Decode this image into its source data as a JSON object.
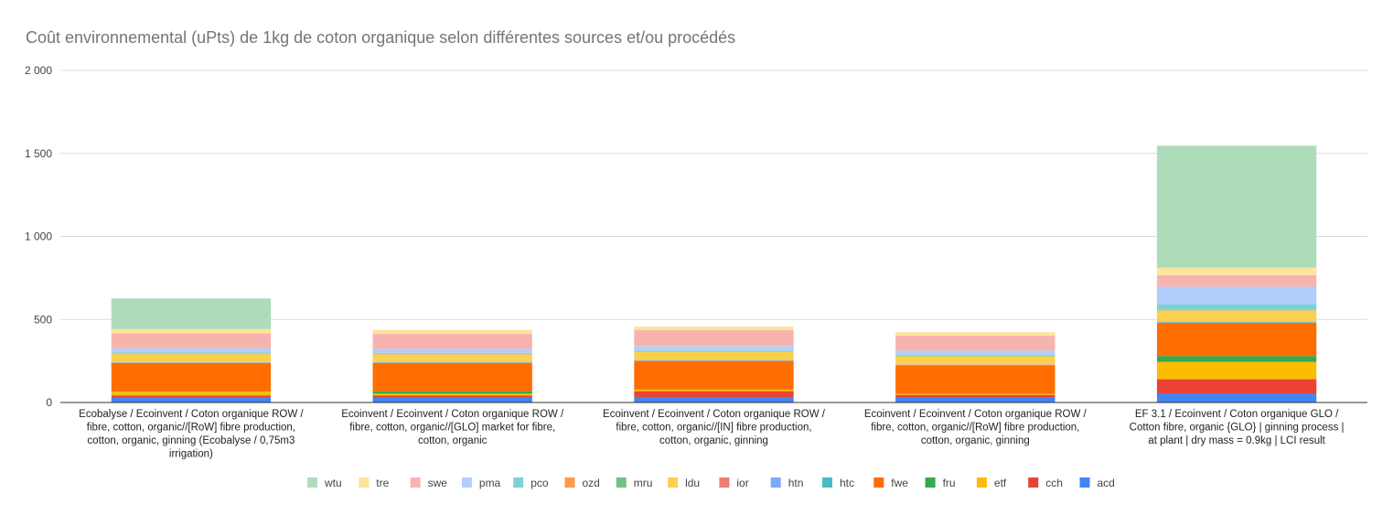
{
  "chart_data": {
    "type": "bar",
    "stacked": true,
    "title": "Coût environnemental (uPts) de 1kg de coton organique selon différentes sources et/ou procédés",
    "xlabel": "",
    "ylabel": "",
    "ylim": [
      0,
      2000
    ],
    "yticks": [
      0,
      500,
      1000,
      1500,
      2000
    ],
    "ytick_labels": [
      "0",
      "500",
      "1 000",
      "1 500",
      "2 000"
    ],
    "grid": true,
    "legend_position": "bottom",
    "categories": [
      [
        "Ecobalyse / Ecoinvent / Coton organique ROW /",
        "fibre, cotton, organic//[RoW] fibre production,",
        "cotton, organic, ginning (Ecobalyse / 0,75m3",
        "irrigation)"
      ],
      [
        "Ecoinvent / Ecoinvent / Coton organique ROW /",
        "fibre, cotton, organic//[GLO] market for fibre,",
        "cotton, organic"
      ],
      [
        "Ecoinvent / Ecoinvent / Coton organique ROW /",
        "fibre, cotton, organic//[IN] fibre production,",
        "cotton, organic, ginning"
      ],
      [
        "Ecoinvent / Ecoinvent / Coton organique ROW /",
        "fibre, cotton, organic//[RoW] fibre production,",
        "cotton, organic, ginning"
      ],
      [
        "EF 3.1 / Ecoinvent / Coton organique GLO /",
        "Cotton fibre, organic {GLO} | ginning process |",
        "at plant | dry mass = 0.9kg | LCI result"
      ]
    ],
    "series": [
      {
        "name": "acd",
        "color": "#4285f4",
        "values": [
          28,
          28,
          28,
          28,
          55
        ]
      },
      {
        "name": "cch",
        "color": "#ea4335",
        "values": [
          15,
          15,
          40,
          18,
          85
        ]
      },
      {
        "name": "etf",
        "color": "#fbbc04",
        "values": [
          22,
          10,
          10,
          5,
          105
        ]
      },
      {
        "name": "fru",
        "color": "#34a853",
        "values": [
          2,
          15,
          2,
          2,
          35
        ]
      },
      {
        "name": "fwe",
        "color": "#ff6d01",
        "values": [
          170,
          170,
          170,
          170,
          200
        ]
      },
      {
        "name": "htc",
        "color": "#46bdc6",
        "values": [
          2,
          2,
          2,
          2,
          3
        ]
      },
      {
        "name": "htn",
        "color": "#7baaf7",
        "values": [
          2,
          2,
          2,
          2,
          3
        ]
      },
      {
        "name": "ior",
        "color": "#f07b72",
        "values": [
          2,
          2,
          2,
          2,
          2
        ]
      },
      {
        "name": "ldu",
        "color": "#fcd04f",
        "values": [
          50,
          45,
          50,
          50,
          65
        ]
      },
      {
        "name": "mru",
        "color": "#71c287",
        "values": [
          2,
          2,
          2,
          2,
          2
        ]
      },
      {
        "name": "ozd",
        "color": "#ff994d",
        "values": [
          2,
          2,
          2,
          2,
          2
        ]
      },
      {
        "name": "pco",
        "color": "#7ed1d7",
        "values": [
          5,
          5,
          5,
          5,
          35
        ]
      },
      {
        "name": "pma",
        "color": "#b3cefb",
        "values": [
          25,
          25,
          25,
          25,
          105
        ]
      },
      {
        "name": "swe",
        "color": "#f7b4ae",
        "values": [
          90,
          90,
          95,
          90,
          70
        ]
      },
      {
        "name": "tre",
        "color": "#fde49b",
        "values": [
          25,
          25,
          22,
          20,
          45
        ]
      },
      {
        "name": "wtu",
        "color": "#aedcba",
        "values": [
          185,
          0,
          0,
          0,
          735
        ]
      }
    ],
    "legend_order": [
      "wtu",
      "tre",
      "swe",
      "pma",
      "pco",
      "ozd",
      "mru",
      "ldu",
      "ior",
      "htn",
      "htc",
      "fwe",
      "fru",
      "etf",
      "cch",
      "acd"
    ]
  }
}
